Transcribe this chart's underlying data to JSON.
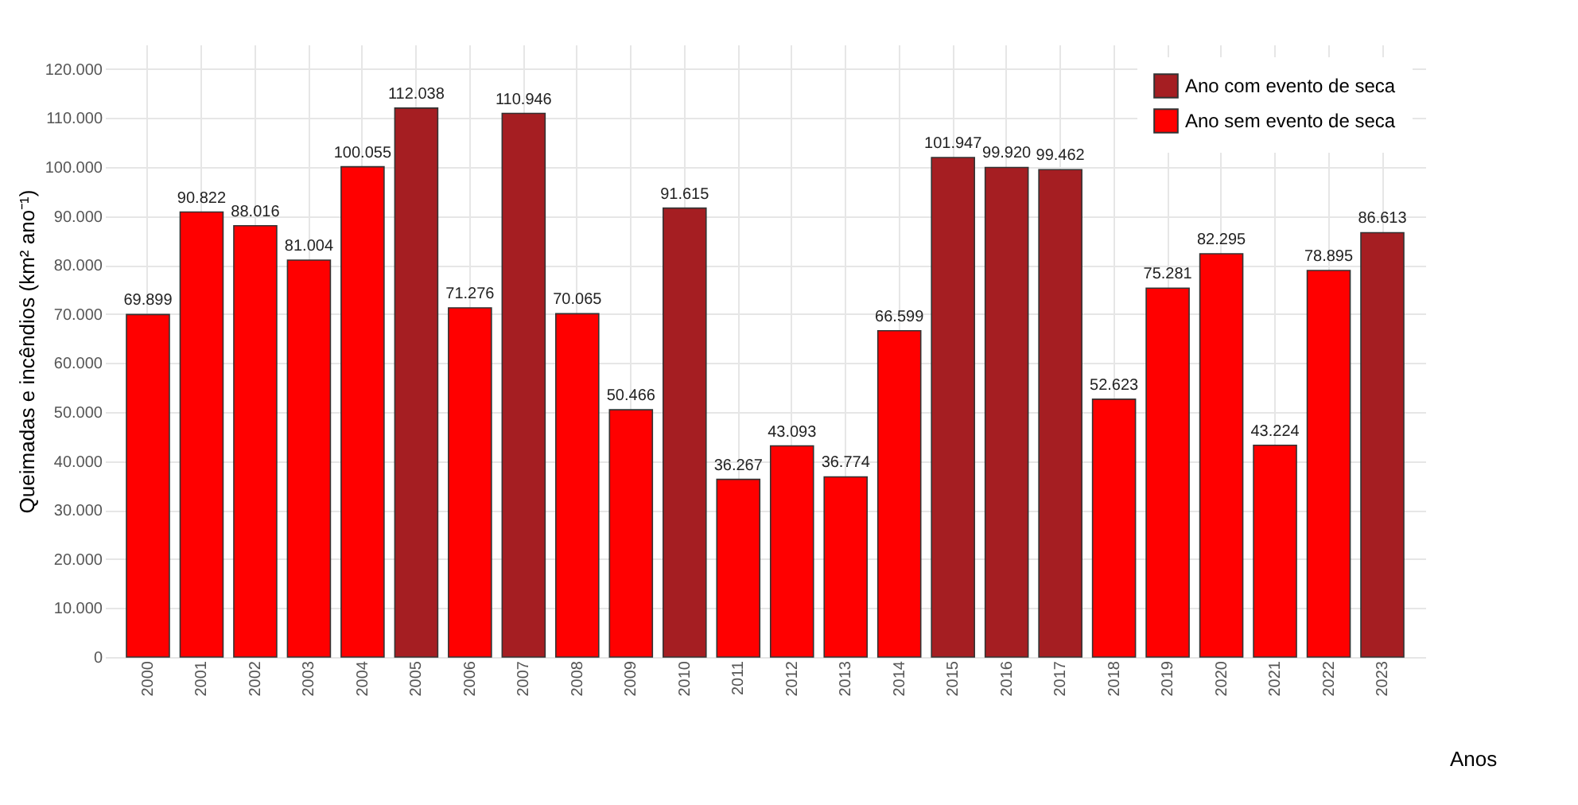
{
  "chart_data": {
    "type": "bar",
    "xlabel": "Anos",
    "ylabel": "Queimadas e incêndios (km² ano⁻¹)",
    "categories": [
      "2000",
      "2001",
      "2002",
      "2003",
      "2004",
      "2005",
      "2006",
      "2007",
      "2008",
      "2009",
      "2010",
      "2011",
      "2012",
      "2013",
      "2014",
      "2015",
      "2016",
      "2017",
      "2018",
      "2019",
      "2020",
      "2021",
      "2022",
      "2023"
    ],
    "series": [
      {
        "name": "Ano com evento de seca",
        "color": "#a51e22",
        "values": [
          null,
          null,
          null,
          null,
          null,
          112038,
          null,
          110946,
          null,
          null,
          91615,
          null,
          null,
          null,
          null,
          101947,
          99920,
          99462,
          null,
          null,
          null,
          null,
          null,
          86613
        ],
        "value_labels": [
          null,
          null,
          null,
          null,
          null,
          "112.038",
          null,
          "110.946",
          null,
          null,
          "91.615",
          null,
          null,
          null,
          null,
          "101.947",
          "99.920",
          "99.462",
          null,
          null,
          null,
          null,
          null,
          "86.613"
        ]
      },
      {
        "name": "Ano sem evento de seca",
        "color": "#ff0000",
        "values": [
          69899,
          90822,
          88016,
          81004,
          100055,
          null,
          71276,
          null,
          70065,
          50466,
          null,
          36267,
          43093,
          36774,
          66599,
          null,
          null,
          null,
          52623,
          75281,
          82295,
          43224,
          78895,
          null
        ],
        "value_labels": [
          "69.899",
          "90.822",
          "88.016",
          "81.004",
          "100.055",
          null,
          "71.276",
          null,
          "70.065",
          "50.466",
          null,
          "36.267",
          "43.093",
          "36.774",
          "66.599",
          null,
          null,
          null,
          "52.623",
          "75.281",
          "82.295",
          "43.224",
          "78.895",
          null
        ]
      }
    ],
    "ylim": [
      0,
      125000
    ],
    "yticks": [
      {
        "value": 0,
        "label": "0"
      },
      {
        "value": 10000,
        "label": "10.000"
      },
      {
        "value": 20000,
        "label": "20.000"
      },
      {
        "value": 30000,
        "label": "30.000"
      },
      {
        "value": 40000,
        "label": "40.000"
      },
      {
        "value": 50000,
        "label": "50.000"
      },
      {
        "value": 60000,
        "label": "60.000"
      },
      {
        "value": 70000,
        "label": "70.000"
      },
      {
        "value": 80000,
        "label": "80.000"
      },
      {
        "value": 90000,
        "label": "90.000"
      },
      {
        "value": 100000,
        "label": "100.000"
      },
      {
        "value": 110000,
        "label": "110.000"
      },
      {
        "value": 120000,
        "label": "120.000"
      }
    ],
    "grid": true,
    "legend": "top right"
  }
}
